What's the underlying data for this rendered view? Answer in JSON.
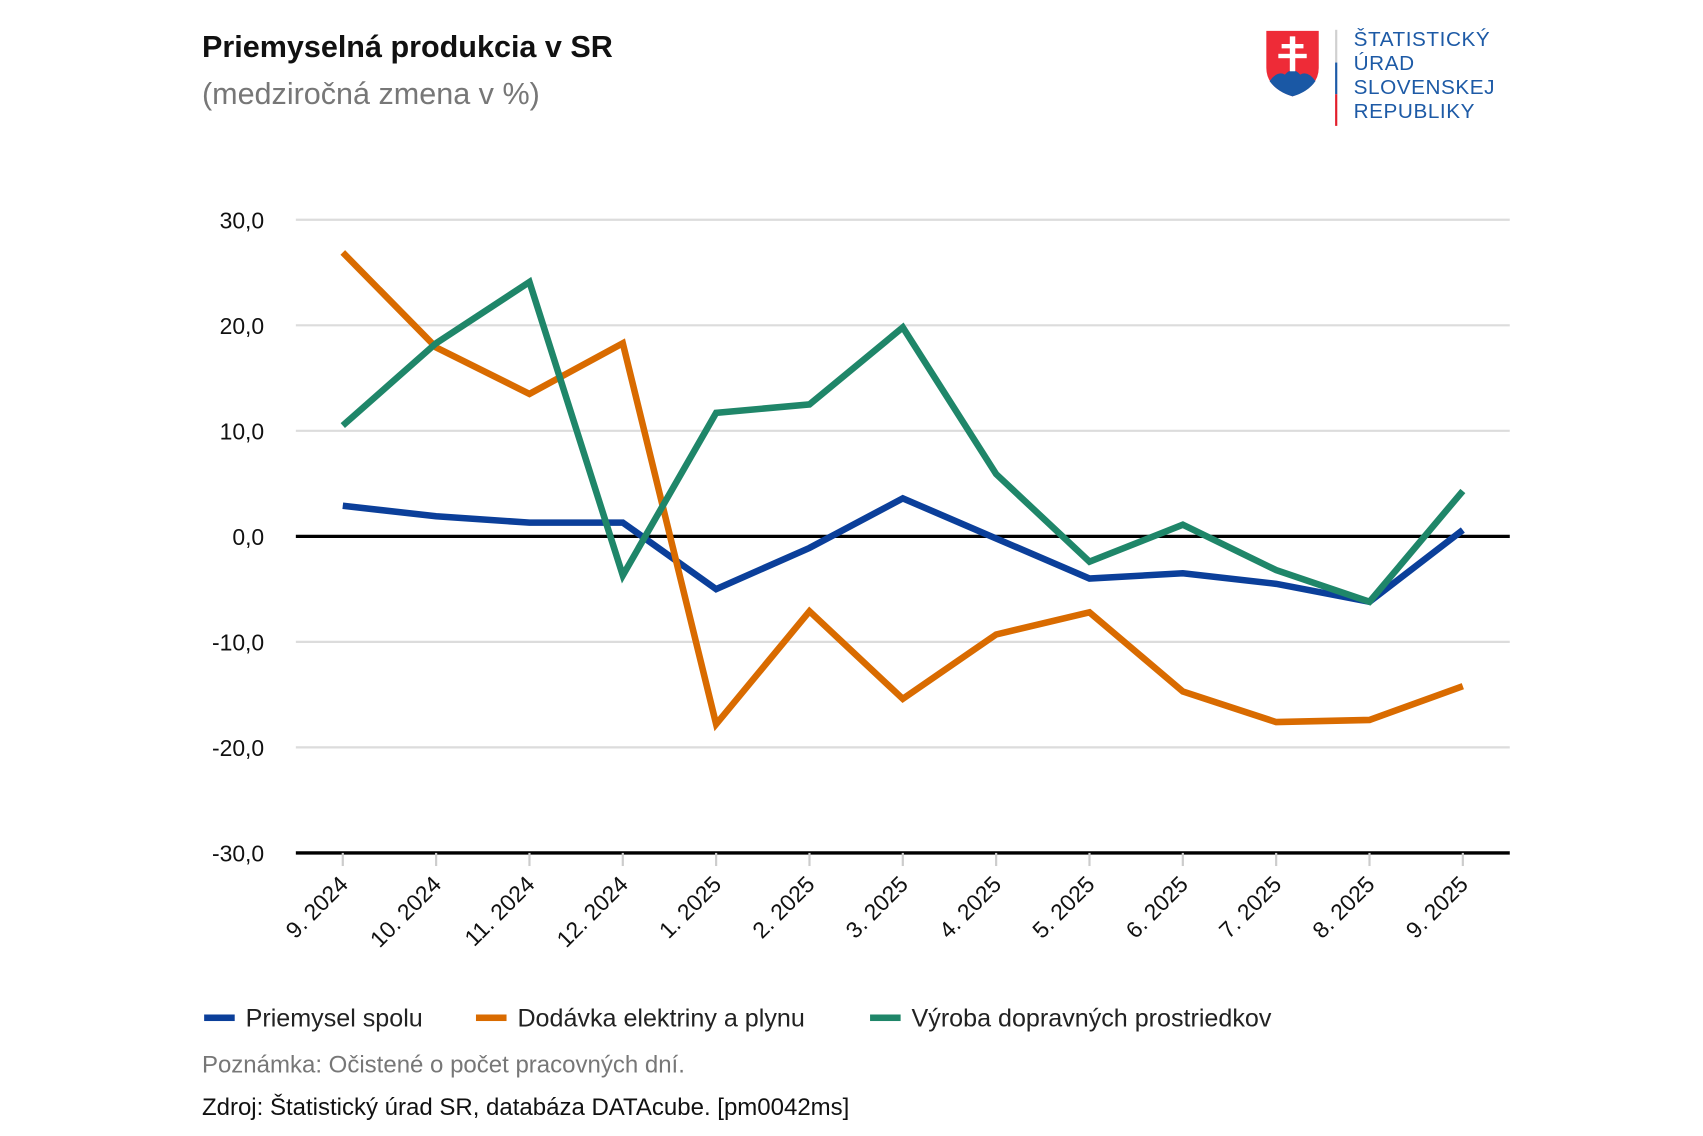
{
  "header": {
    "title": "Priemyselná produkcia v SR",
    "subtitle": "(medziročná zmena v %)"
  },
  "logo": {
    "lines": [
      "ŠTATISTICKÝ",
      "ÚRAD",
      "SLOVENSKEJ",
      "REPUBLIKY"
    ]
  },
  "footer": {
    "note": "Poznámka: Očistené o počet pracovných dní.",
    "source": "Zdroj: Štatistický úrad SR, databáza DATAcube. [pm0042ms]"
  },
  "chart_data": {
    "type": "line",
    "title": "Priemyselná produkcia v SR",
    "subtitle": "(medziročná zmena v %)",
    "categories": [
      "9. 2024",
      "10. 2024",
      "11. 2024",
      "12. 2024",
      "1. 2025",
      "2. 2025",
      "3. 2025",
      "4. 2025",
      "5. 2025",
      "6. 2025",
      "7. 2025",
      "8. 2025",
      "9. 2025"
    ],
    "ylim": [
      -30,
      30
    ],
    "yticks": [
      "30,0",
      "20,0",
      "10,0",
      "0,0",
      "-10,0",
      "-20,0",
      "-30,0"
    ],
    "ytick_values": [
      30,
      20,
      10,
      0,
      -10,
      -20,
      -30
    ],
    "grid": true,
    "legend_position": "bottom",
    "series": [
      {
        "name": "Priemysel spolu",
        "color": "#0b3f9a",
        "values": [
          2.9,
          1.9,
          1.3,
          1.3,
          -5.0,
          -1.1,
          3.6,
          -0.2,
          -4.0,
          -3.5,
          -4.5,
          -6.2,
          0.6
        ]
      },
      {
        "name": "Dodávka elektriny a plynu",
        "color": "#d96b00",
        "values": [
          26.9,
          17.9,
          13.5,
          18.3,
          -17.8,
          -7.1,
          -15.4,
          -9.3,
          -7.2,
          -14.7,
          -17.6,
          -17.4,
          -14.2
        ]
      },
      {
        "name": "Výroba dopravných prostriedkov",
        "color": "#1f8669",
        "values": [
          10.5,
          18.3,
          24.1,
          -3.7,
          11.7,
          12.5,
          19.8,
          5.9,
          -2.4,
          1.1,
          -3.2,
          -6.2,
          4.3
        ]
      }
    ]
  }
}
